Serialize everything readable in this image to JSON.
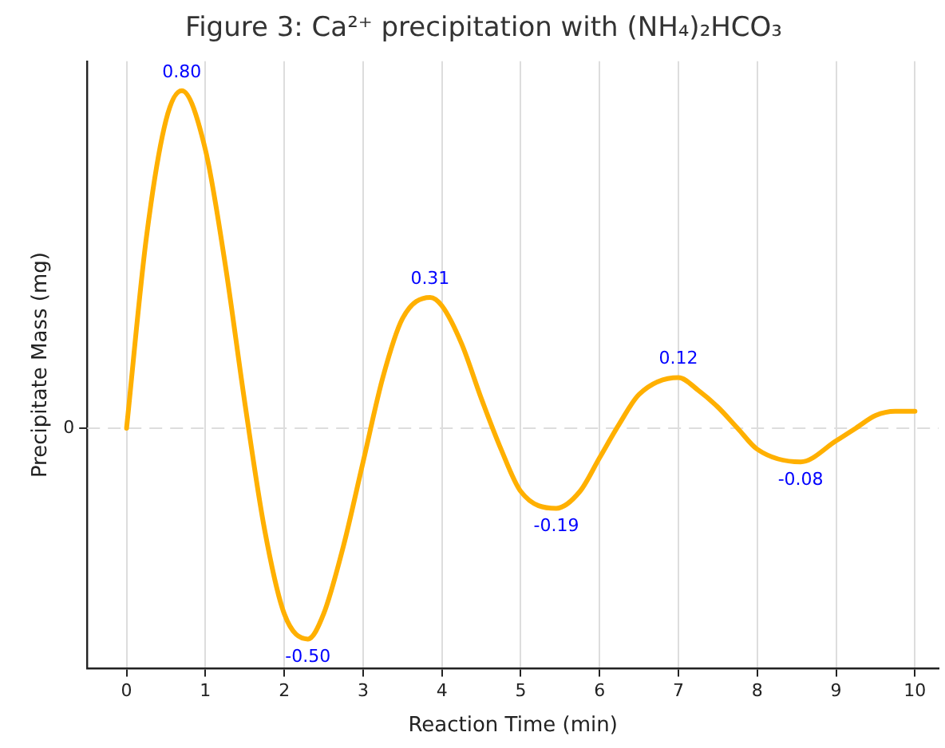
{
  "chart_data": {
    "type": "line",
    "title": "Figure 3: Ca²⁺ precipitation with (NH₄)₂HCO₃",
    "xlabel": "Reaction Time (min)",
    "ylabel": "Precipitate Mass (mg)",
    "series": [
      {
        "color": "#ffb000",
        "x": [
          0,
          0.25,
          0.5,
          0.7,
          1.0,
          1.25,
          1.5,
          1.75,
          2.0,
          2.3,
          2.5,
          2.75,
          3.0,
          3.25,
          3.5,
          3.85,
          4.0,
          4.25,
          4.5,
          4.75,
          5.0,
          5.45,
          5.75,
          6.0,
          6.25,
          6.5,
          7.0,
          7.25,
          7.5,
          7.75,
          8.0,
          8.55,
          9.0,
          9.25,
          9.5,
          9.75,
          10
        ],
        "values": [
          0,
          0.45,
          0.73,
          0.8,
          0.66,
          0.39,
          0.06,
          -0.24,
          -0.44,
          -0.5,
          -0.44,
          -0.28,
          -0.08,
          0.12,
          0.26,
          0.31,
          0.29,
          0.2,
          0.07,
          -0.05,
          -0.15,
          -0.19,
          -0.15,
          -0.07,
          0.01,
          0.08,
          0.12,
          0.09,
          0.05,
          0.0,
          -0.05,
          -0.08,
          -0.03,
          0.0,
          0.03,
          0.04,
          0.04
        ],
        "value_labels": [
          null,
          null,
          null,
          "0.80",
          null,
          null,
          null,
          null,
          null,
          "-0.50",
          null,
          null,
          null,
          null,
          null,
          "0.31",
          null,
          null,
          null,
          null,
          null,
          "-0.19",
          null,
          null,
          null,
          null,
          "0.12",
          null,
          null,
          null,
          null,
          "-0.08",
          null,
          null,
          null,
          null,
          null
        ]
      }
    ],
    "xlim": [
      -0.5,
      10.3
    ],
    "xticks": [
      0,
      1,
      2,
      3,
      4,
      5,
      6,
      7,
      8,
      9,
      10
    ],
    "ylim": [
      -0.57,
      0.87
    ],
    "annotations": [
      "0"
    ],
    "ref_lines": [
      {
        "axis": "y",
        "value": 0,
        "color": "#dddddd",
        "line_style": "dashed"
      }
    ],
    "grid": "x",
    "legend": false,
    "marker": "none",
    "line_style": "solid"
  }
}
